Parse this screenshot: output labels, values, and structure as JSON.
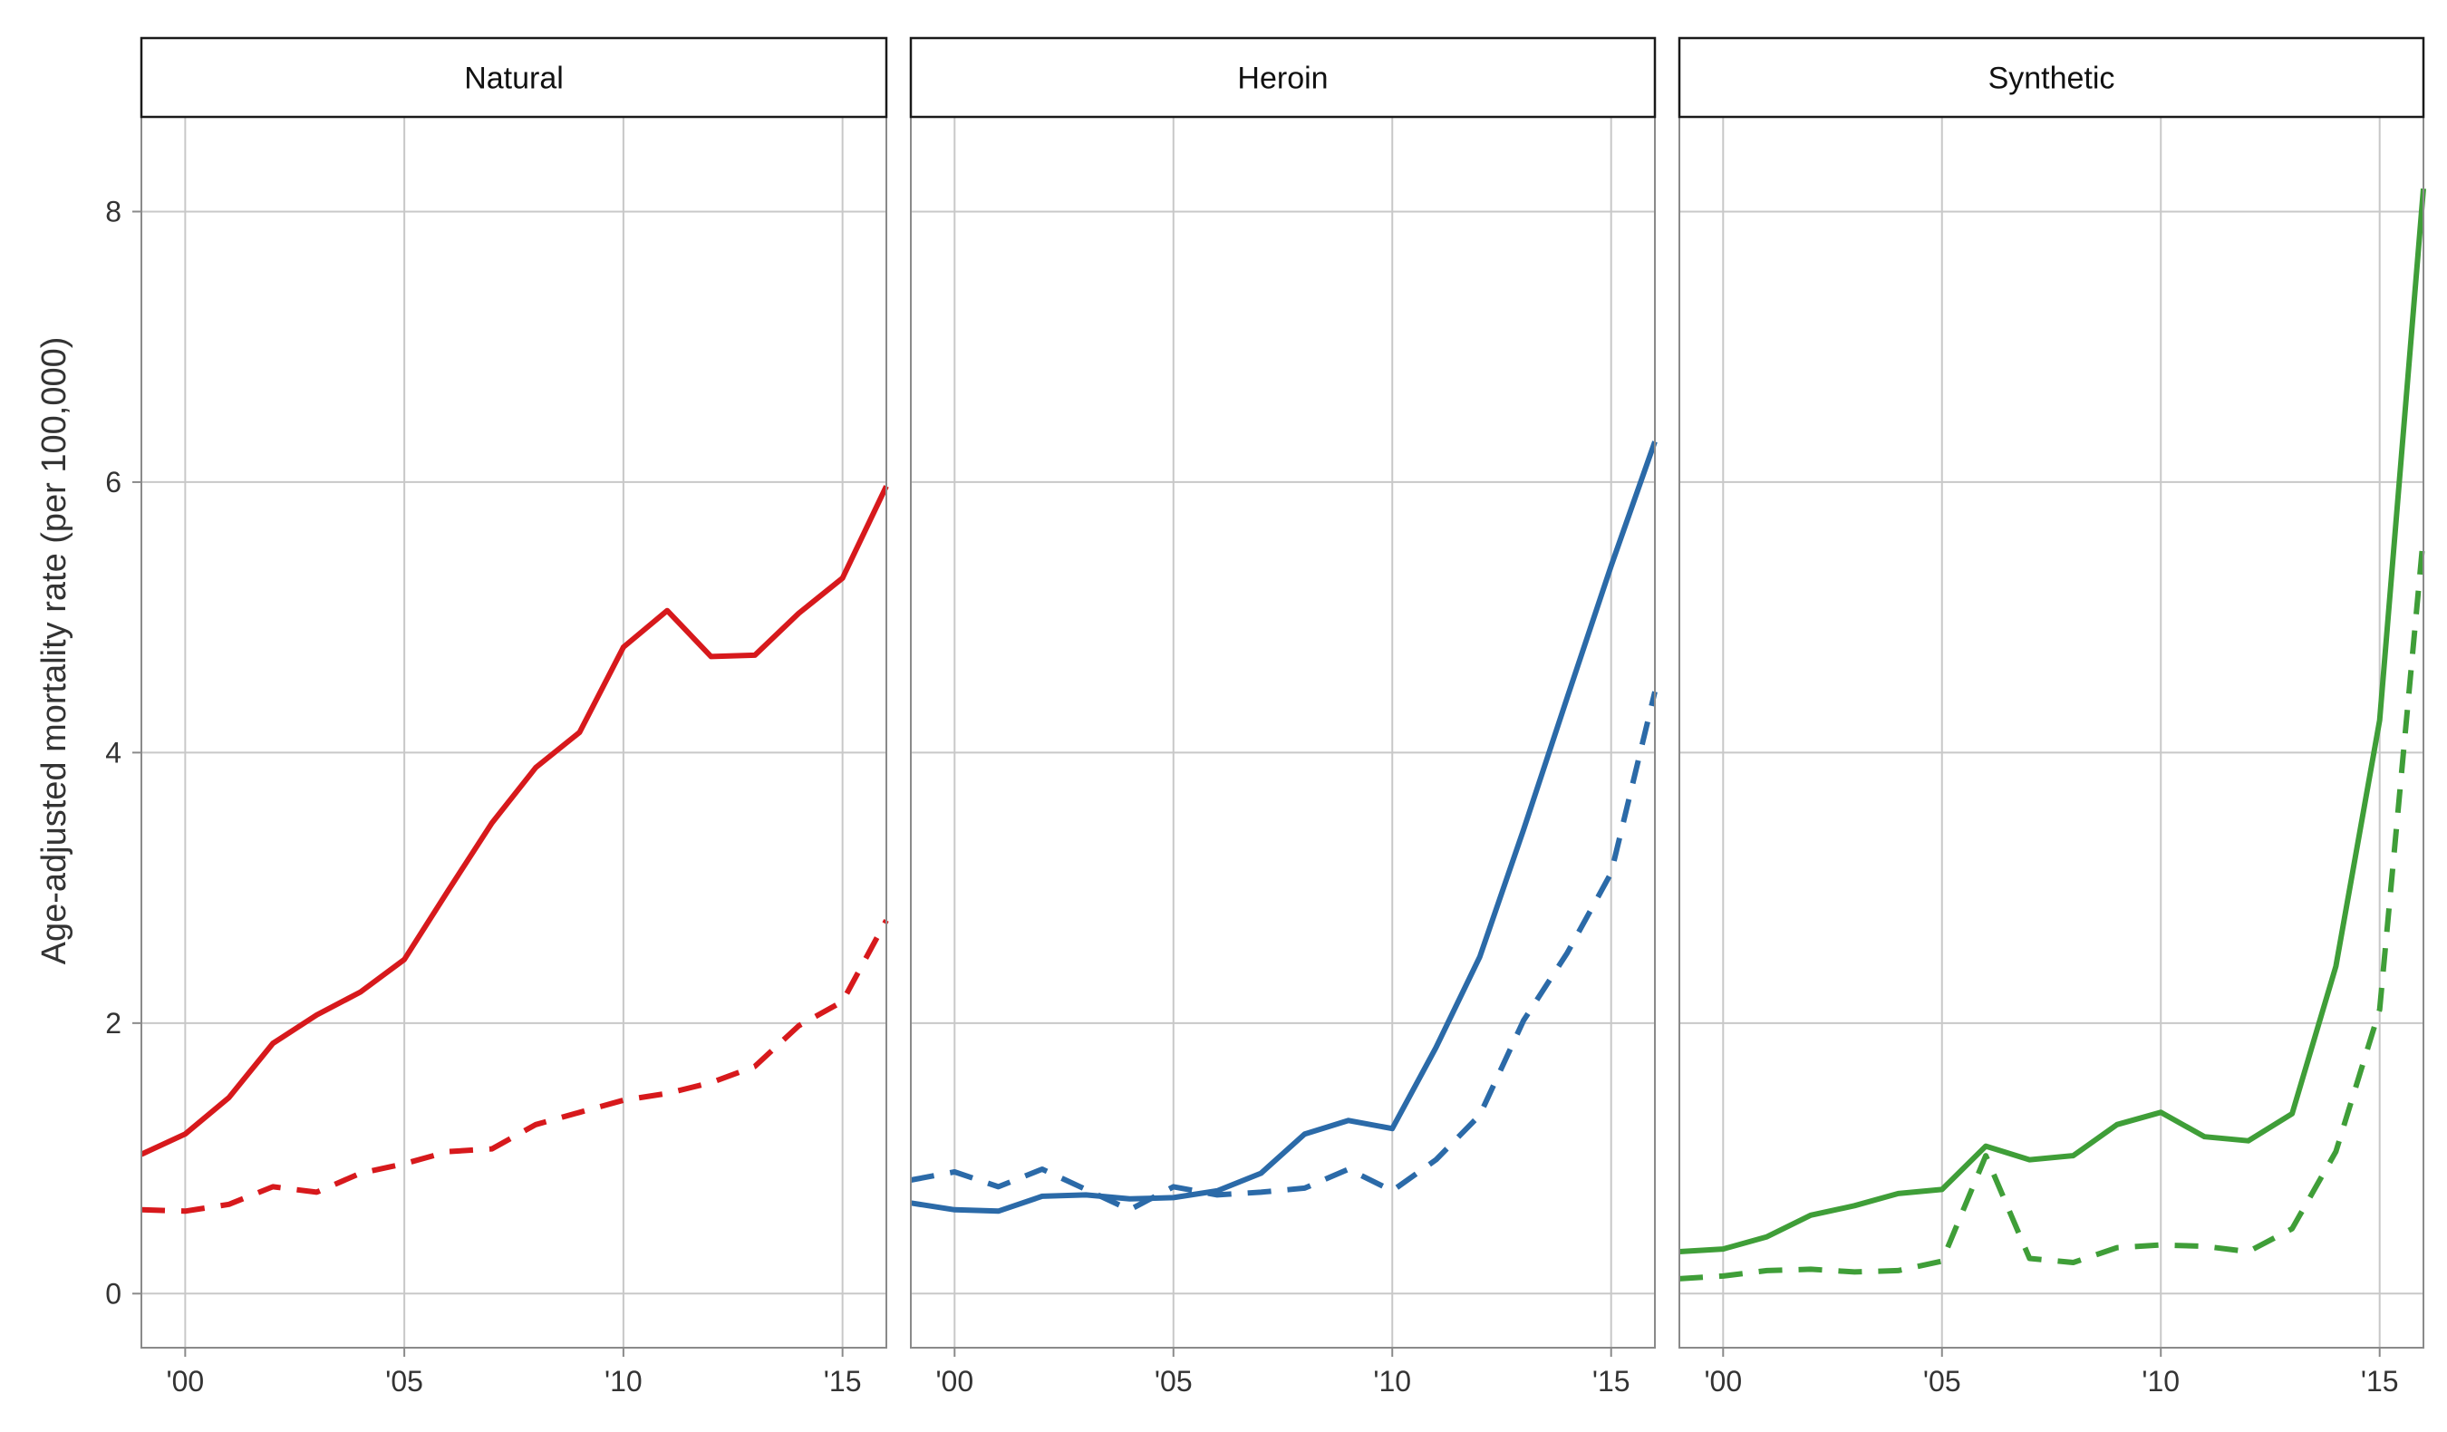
{
  "chart_data": {
    "type": "line",
    "ylabel": "Age-adjusted mortality rate (per 100,000)",
    "ylim": [
      -0.4,
      8.7
    ],
    "xlim": [
      1999,
      2016
    ],
    "grid": true,
    "y_ticks": [
      0,
      2,
      4,
      6,
      8
    ],
    "y_tick_labels": [
      "0",
      "2",
      "4",
      "6",
      "8"
    ],
    "x_ticks": [
      2000,
      2005,
      2010,
      2015
    ],
    "x_tick_labels": [
      "'00",
      "'05",
      "'10",
      "'15"
    ],
    "x": [
      1999,
      2000,
      2001,
      2002,
      2003,
      2004,
      2005,
      2006,
      2007,
      2008,
      2009,
      2010,
      2011,
      2012,
      2013,
      2014,
      2015,
      2016
    ],
    "panels": [
      {
        "title": "Natural",
        "color": "#d7191c",
        "series": [
          {
            "style": "solid",
            "values": [
              1.03,
              1.18,
              1.45,
              1.85,
              2.06,
              2.23,
              2.47,
              2.98,
              3.48,
              3.89,
              4.15,
              4.78,
              5.05,
              4.71,
              4.72,
              5.03,
              5.29,
              5.97
            ]
          },
          {
            "style": "dashed",
            "values": [
              0.62,
              0.61,
              0.66,
              0.79,
              0.75,
              0.89,
              0.96,
              1.05,
              1.07,
              1.25,
              1.34,
              1.43,
              1.48,
              1.56,
              1.68,
              1.98,
              2.16,
              2.76
            ]
          }
        ]
      },
      {
        "title": "Heroin",
        "color": "#2b6aa8",
        "series": [
          {
            "style": "solid",
            "values": [
              0.67,
              0.62,
              0.61,
              0.72,
              0.73,
              0.7,
              0.71,
              0.76,
              0.89,
              1.18,
              1.28,
              1.22,
              1.82,
              2.49,
              3.43,
              4.41,
              5.38,
              6.3
            ]
          },
          {
            "style": "dashed",
            "values": [
              0.84,
              0.9,
              0.79,
              0.92,
              0.77,
              0.62,
              0.79,
              0.73,
              0.75,
              0.78,
              0.92,
              0.76,
              0.99,
              1.32,
              2.02,
              2.52,
              3.11,
              4.45
            ]
          }
        ]
      },
      {
        "title": "Synthetic",
        "color": "#3f9e38",
        "series": [
          {
            "style": "solid",
            "values": [
              0.31,
              0.33,
              0.42,
              0.58,
              0.65,
              0.74,
              0.77,
              1.09,
              0.99,
              1.02,
              1.25,
              1.34,
              1.16,
              1.13,
              1.33,
              2.42,
              4.24,
              8.17
            ]
          },
          {
            "style": "dashed",
            "values": [
              0.11,
              0.13,
              0.17,
              0.18,
              0.16,
              0.17,
              0.24,
              1.02,
              0.26,
              0.23,
              0.34,
              0.36,
              0.35,
              0.31,
              0.48,
              1.05,
              2.1,
              5.6
            ]
          }
        ]
      }
    ]
  }
}
